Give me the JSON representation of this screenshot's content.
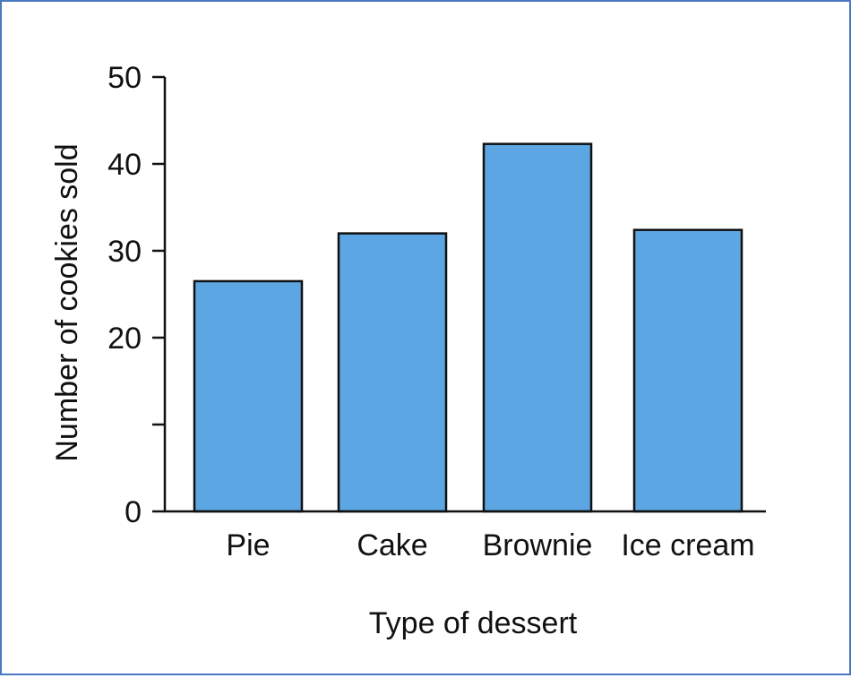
{
  "chart_data": {
    "type": "bar",
    "categories": [
      "Pie",
      "Cake",
      "Brownie",
      "Ice cream"
    ],
    "values": [
      26.5,
      32,
      42.3,
      32.4
    ],
    "title": "",
    "xlabel": "Type of dessert",
    "ylabel": "Number of cookies sold",
    "ylim": [
      0,
      50
    ],
    "yticks": [
      0,
      10,
      20,
      30,
      40,
      50
    ],
    "ytick_labels": [
      "0",
      "",
      "20",
      "30",
      "40",
      "50"
    ],
    "bar_color": "#5ba6e3",
    "grid": false,
    "legend": "none"
  }
}
